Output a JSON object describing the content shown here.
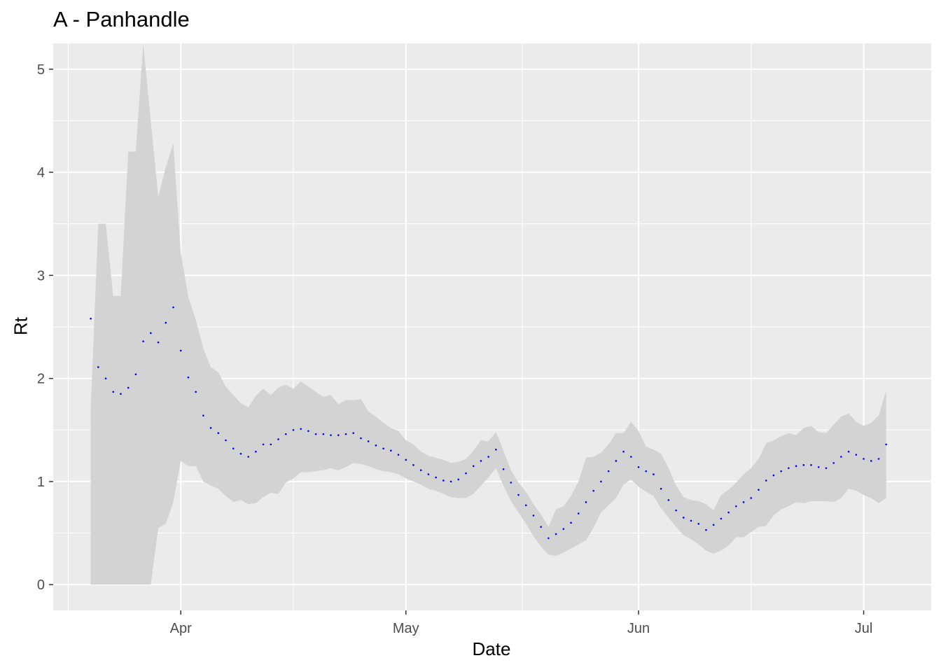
{
  "chart_data": {
    "type": "line",
    "title": "A - Panhandle",
    "xlabel": "Date",
    "ylabel": "Rt",
    "x_ticks": [
      {
        "label": "Apr",
        "date": "2020-04-01"
      },
      {
        "label": "May",
        "date": "2020-05-01"
      },
      {
        "label": "Jun",
        "date": "2020-06-01"
      },
      {
        "label": "Jul",
        "date": "2020-07-01"
      }
    ],
    "y_ticks": [
      0,
      1,
      2,
      3,
      4,
      5
    ],
    "xlim": [
      "2020-03-15",
      "2020-07-10"
    ],
    "ylim": [
      -0.25,
      5.25
    ],
    "grid": true,
    "colors": {
      "panel": "#ebebeb",
      "grid": "#ffffff",
      "ribbon": "#d3d3d3",
      "points": "#0000ff"
    },
    "series": [
      {
        "start_date": "2020-03-20",
        "rt": [
          2.58,
          2.11,
          2.0,
          1.87,
          1.85,
          1.91,
          2.04,
          2.36,
          2.44,
          2.35,
          2.54,
          2.69,
          2.27,
          2.01,
          1.87,
          1.64,
          1.52,
          1.47,
          1.4,
          1.32,
          1.27,
          1.24,
          1.29,
          1.36,
          1.36,
          1.41,
          1.46,
          1.5,
          1.51,
          1.49,
          1.46,
          1.46,
          1.45,
          1.45,
          1.46,
          1.47,
          1.42,
          1.39,
          1.35,
          1.32,
          1.3,
          1.26,
          1.21,
          1.16,
          1.11,
          1.07,
          1.04,
          1.01,
          1.0,
          1.02,
          1.08,
          1.15,
          1.2,
          1.24,
          1.31,
          1.12,
          0.99,
          0.87,
          0.77,
          0.67,
          0.56,
          0.45,
          0.49,
          0.54,
          0.6,
          0.69,
          0.8,
          0.91,
          1.0,
          1.1,
          1.2,
          1.29,
          1.24,
          1.14,
          1.1,
          1.07,
          0.93,
          0.82,
          0.72,
          0.65,
          0.62,
          0.59,
          0.53,
          0.58,
          0.64,
          0.7,
          0.76,
          0.8,
          0.84,
          0.92,
          1.01,
          1.06,
          1.1,
          1.13,
          1.15,
          1.16,
          1.16,
          1.14,
          1.13,
          1.18,
          1.24,
          1.29,
          1.26,
          1.22,
          1.2,
          1.22,
          1.36
        ],
        "lower": [
          0.0,
          0.0,
          0.0,
          0.0,
          0.0,
          0.0,
          0.0,
          0.0,
          0.0,
          0.55,
          0.59,
          0.8,
          1.2,
          1.15,
          1.15,
          1.0,
          0.96,
          0.93,
          0.86,
          0.8,
          0.82,
          0.78,
          0.79,
          0.85,
          0.89,
          0.88,
          0.99,
          1.03,
          1.09,
          1.09,
          1.1,
          1.11,
          1.13,
          1.11,
          1.14,
          1.18,
          1.17,
          1.15,
          1.12,
          1.1,
          1.09,
          1.07,
          1.03,
          1.0,
          0.97,
          0.93,
          0.91,
          0.88,
          0.85,
          0.84,
          0.84,
          0.88,
          0.96,
          1.04,
          1.13,
          0.96,
          0.81,
          0.7,
          0.59,
          0.47,
          0.37,
          0.29,
          0.28,
          0.31,
          0.35,
          0.39,
          0.43,
          0.55,
          0.7,
          0.77,
          0.84,
          0.97,
          1.02,
          0.95,
          0.9,
          0.86,
          0.74,
          0.65,
          0.56,
          0.48,
          0.44,
          0.39,
          0.33,
          0.3,
          0.33,
          0.38,
          0.46,
          0.46,
          0.51,
          0.56,
          0.57,
          0.67,
          0.73,
          0.76,
          0.8,
          0.79,
          0.81,
          0.81,
          0.81,
          0.8,
          0.84,
          0.93,
          0.91,
          0.87,
          0.84,
          0.79,
          0.84
        ],
        "upper": [
          1.71,
          3.5,
          3.5,
          2.8,
          2.8,
          4.2,
          4.2,
          5.25,
          4.5,
          3.76,
          4.05,
          4.28,
          3.22,
          2.79,
          2.57,
          2.29,
          2.11,
          2.06,
          1.92,
          1.84,
          1.76,
          1.72,
          1.83,
          1.9,
          1.84,
          1.91,
          1.94,
          1.9,
          1.97,
          1.92,
          1.87,
          1.82,
          1.84,
          1.75,
          1.79,
          1.79,
          1.8,
          1.68,
          1.63,
          1.57,
          1.52,
          1.49,
          1.4,
          1.36,
          1.29,
          1.25,
          1.23,
          1.21,
          1.18,
          1.19,
          1.22,
          1.3,
          1.4,
          1.39,
          1.48,
          1.3,
          1.11,
          0.99,
          0.9,
          0.78,
          0.68,
          0.56,
          0.73,
          0.76,
          0.86,
          1.0,
          1.23,
          1.24,
          1.28,
          1.36,
          1.47,
          1.47,
          1.58,
          1.49,
          1.34,
          1.31,
          1.27,
          1.13,
          0.96,
          0.85,
          0.82,
          0.81,
          0.78,
          0.72,
          0.87,
          0.92,
          0.99,
          1.07,
          1.13,
          1.22,
          1.37,
          1.4,
          1.44,
          1.47,
          1.45,
          1.52,
          1.54,
          1.48,
          1.47,
          1.55,
          1.63,
          1.66,
          1.58,
          1.54,
          1.57,
          1.64,
          1.88
        ]
      }
    ]
  }
}
